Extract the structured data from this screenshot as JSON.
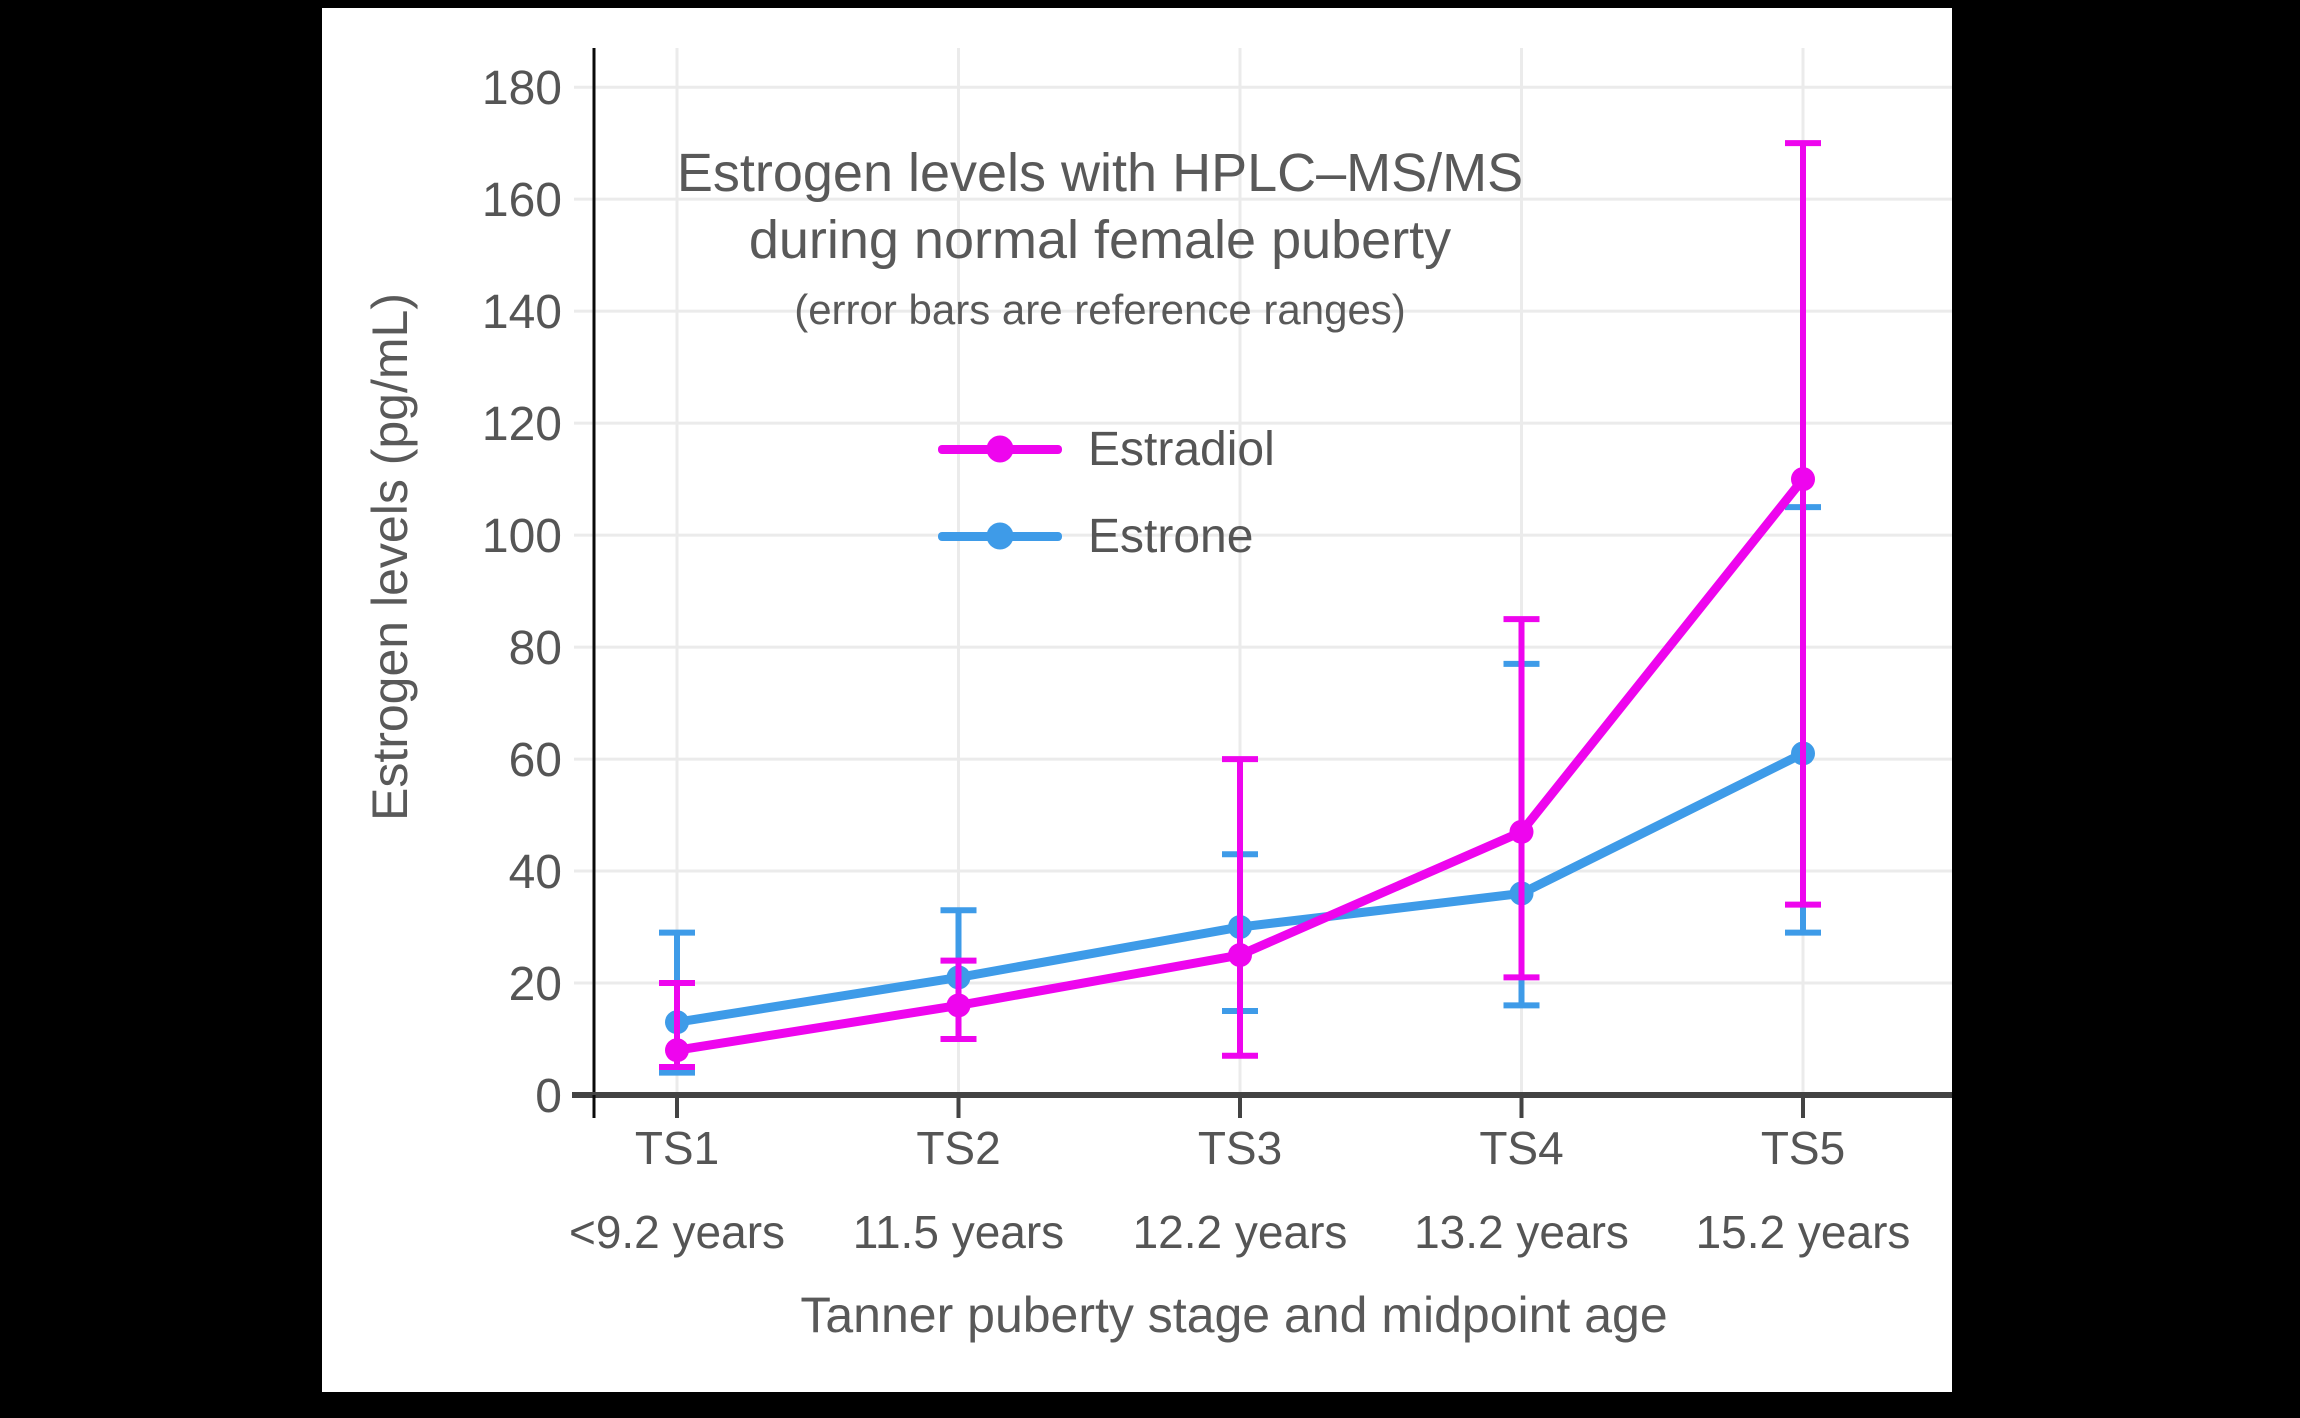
{
  "page": {
    "background": "#000000",
    "panel_background": "#ffffff"
  },
  "colors": {
    "estradiol": "#EE05EE",
    "estrone": "#3E9BE8",
    "grid": "#EBEBEB",
    "y_axis_line": "#0a0a0a",
    "x_axis_line": "#434343",
    "text": "#595959",
    "tick_text": "#555555"
  },
  "legend": {
    "items": [
      {
        "label": "Estradiol",
        "color": "#EE05EE"
      },
      {
        "label": "Estrone",
        "color": "#3E9BE8"
      }
    ]
  },
  "chart_data": {
    "type": "line",
    "title": "Estrogen levels with HPLC–MS/MS",
    "title_line2": "during normal female puberty",
    "subtitle": "(error bars are reference ranges)",
    "xlabel": "Tanner puberty stage and midpoint age",
    "ylabel": "Estrogen levels (pg/mL)",
    "categories": [
      "TS1",
      "TS2",
      "TS3",
      "TS4",
      "TS5"
    ],
    "category_sublabels": [
      "<9.2 years",
      "11.5 years",
      "12.2 years",
      "13.2 years",
      "15.2 years"
    ],
    "y_ticks": [
      0,
      20,
      40,
      60,
      80,
      100,
      120,
      140,
      160,
      180
    ],
    "ylim": [
      0,
      187
    ],
    "grid": true,
    "legend_position": "inside-top-center",
    "error_bars": "reference ranges",
    "series": [
      {
        "name": "Estrone",
        "color": "#3E9BE8",
        "values": [
          13,
          21,
          30,
          36,
          61
        ],
        "err_low": [
          4,
          10,
          15,
          16,
          29
        ],
        "err_high": [
          29,
          33,
          43,
          77,
          105
        ]
      },
      {
        "name": "Estradiol",
        "color": "#EE05EE",
        "values": [
          8,
          16,
          25,
          47,
          110
        ],
        "err_low": [
          5,
          10,
          7,
          21,
          34
        ],
        "err_high": [
          20,
          24,
          60,
          85,
          170
        ]
      }
    ]
  }
}
